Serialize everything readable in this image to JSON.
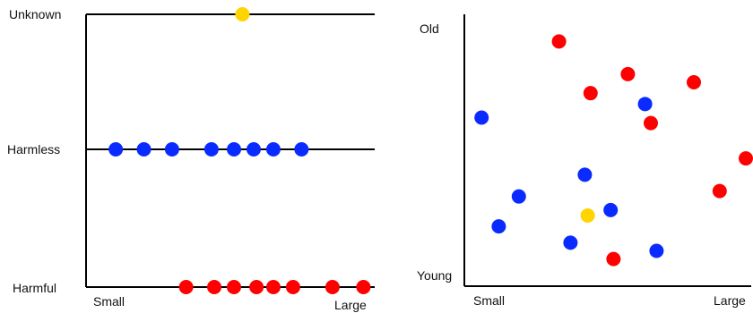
{
  "chart_data": [
    {
      "type": "scatter",
      "title": "",
      "categories": [
        "Harmful",
        "Harmless",
        "Unknown"
      ],
      "xlabel_left": "Small",
      "xlabel_right": "Large",
      "colors": {
        "Harmful": "#ff0000",
        "Harmless": "#0a2bff",
        "Unknown": "#ffd400"
      },
      "points": [
        {
          "category": "Unknown",
          "x": 0.53
        },
        {
          "category": "Harmless",
          "x": 0.08
        },
        {
          "category": "Harmless",
          "x": 0.18
        },
        {
          "category": "Harmless",
          "x": 0.28
        },
        {
          "category": "Harmless",
          "x": 0.42
        },
        {
          "category": "Harmless",
          "x": 0.5
        },
        {
          "category": "Harmless",
          "x": 0.57
        },
        {
          "category": "Harmless",
          "x": 0.64
        },
        {
          "category": "Harmless",
          "x": 0.74
        },
        {
          "category": "Harmful",
          "x": 0.33
        },
        {
          "category": "Harmful",
          "x": 0.43
        },
        {
          "category": "Harmful",
          "x": 0.5
        },
        {
          "category": "Harmful",
          "x": 0.58
        },
        {
          "category": "Harmful",
          "x": 0.64
        },
        {
          "category": "Harmful",
          "x": 0.71
        },
        {
          "category": "Harmful",
          "x": 0.85
        },
        {
          "category": "Harmful",
          "x": 0.96
        }
      ]
    },
    {
      "type": "scatter",
      "title": "",
      "xlabel_left": "Small",
      "xlabel_right": "Large",
      "ylabel_top": "Old",
      "ylabel_bottom": "Young",
      "colors": {
        "red": "#ff0000",
        "blue": "#0a2bff",
        "yellow": "#ffd400"
      },
      "points": [
        {
          "color": "red",
          "x": 0.33,
          "y": 0.9
        },
        {
          "color": "red",
          "x": 0.57,
          "y": 0.78
        },
        {
          "color": "red",
          "x": 0.44,
          "y": 0.71
        },
        {
          "color": "red",
          "x": 0.8,
          "y": 0.75
        },
        {
          "color": "red",
          "x": 0.65,
          "y": 0.6
        },
        {
          "color": "red",
          "x": 0.89,
          "y": 0.35
        },
        {
          "color": "red",
          "x": 0.99,
          "y": 0.47
        },
        {
          "color": "red",
          "x": 0.52,
          "y": 0.1
        },
        {
          "color": "blue",
          "x": 0.06,
          "y": 0.62
        },
        {
          "color": "blue",
          "x": 0.63,
          "y": 0.67
        },
        {
          "color": "blue",
          "x": 0.42,
          "y": 0.41
        },
        {
          "color": "blue",
          "x": 0.19,
          "y": 0.33
        },
        {
          "color": "blue",
          "x": 0.51,
          "y": 0.28
        },
        {
          "color": "blue",
          "x": 0.12,
          "y": 0.22
        },
        {
          "color": "blue",
          "x": 0.37,
          "y": 0.16
        },
        {
          "color": "blue",
          "x": 0.67,
          "y": 0.13
        },
        {
          "color": "yellow",
          "x": 0.43,
          "y": 0.26
        }
      ]
    }
  ]
}
